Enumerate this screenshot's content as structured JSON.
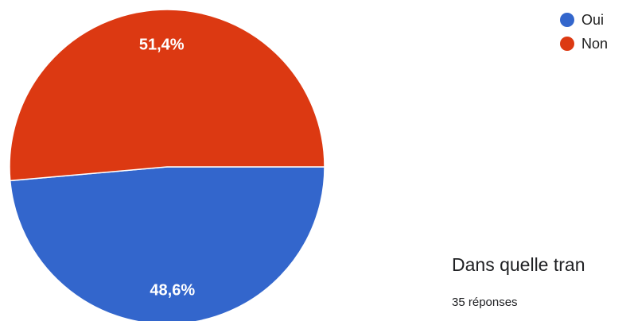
{
  "chart_data": {
    "type": "pie",
    "categories": [
      "Oui",
      "Non"
    ],
    "values": [
      48.6,
      51.4
    ],
    "labels": [
      "48,6%",
      "51,4%"
    ],
    "colors": [
      "#3366cc",
      "#dc3912"
    ],
    "legend_placement": "top-right"
  },
  "legend": {
    "items": [
      {
        "label": "Oui",
        "color": "#3366cc"
      },
      {
        "label": "Non",
        "color": "#dc3912"
      }
    ]
  },
  "next_question": {
    "title": "Dans quelle tran",
    "responses": "35 réponses"
  }
}
